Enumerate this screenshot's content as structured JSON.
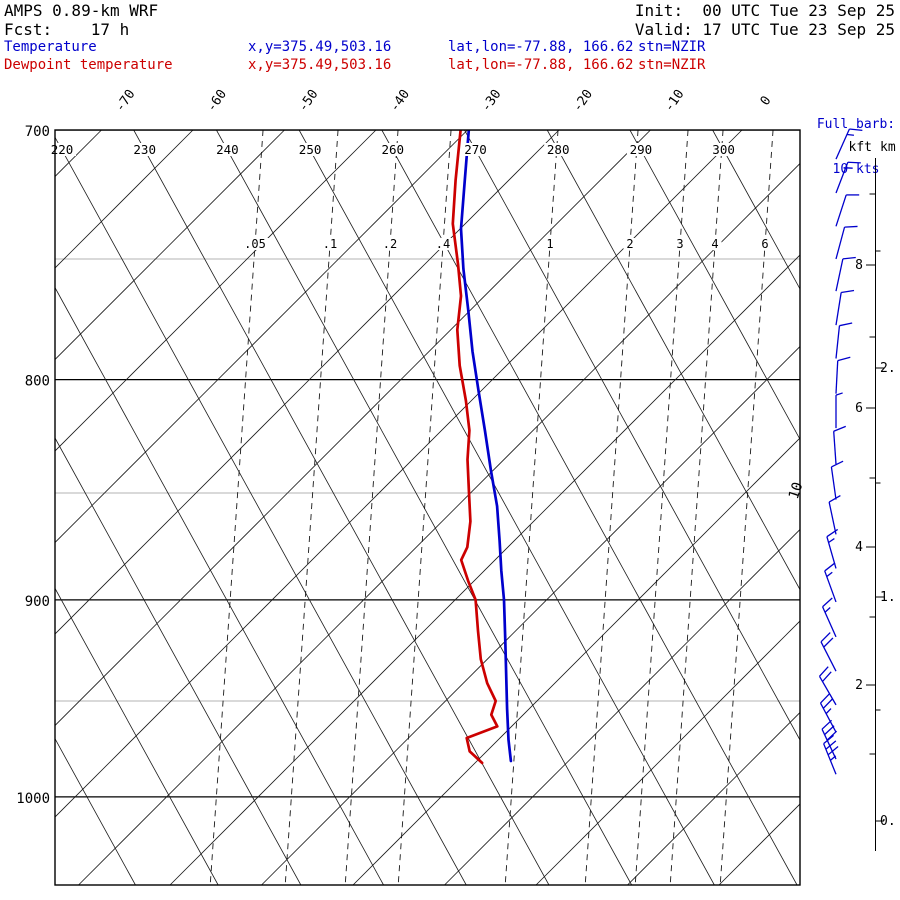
{
  "header": {
    "model": "AMPS 0.89-km WRF",
    "forecast": "Fcst:    17 h",
    "init": "Init:  00 UTC Tue 23 Sep 25",
    "valid": "Valid: 17 UTC Tue 23 Sep 25",
    "legend_temp": {
      "label": "Temperature",
      "xy": "x,y=375.49,503.16",
      "latlon": "lat,lon=-77.88, 166.62",
      "stn": "stn=NZIR"
    },
    "legend_dew": {
      "label": "Dewpoint temperature",
      "xy": "x,y=375.49,503.16",
      "latlon": "lat,lon=-77.88, 166.62",
      "stn": "stn=NZIR"
    },
    "barb_note_line1": "Full barb:",
    "barb_note_line2": "10 kts"
  },
  "colors": {
    "temperature": "#0000cc",
    "dewpoint": "#cc0000",
    "wind_barbs": "#0000cc",
    "grid_minor": "#b3b3b3",
    "grid_major": "#000000"
  },
  "chart_data": {
    "type": "line",
    "title": "Skew-T / log-P sounding, AMPS 0.89-km WRF, station NZIR",
    "pressure_axis": {
      "unit": "hPa",
      "major_ticks": [
        700,
        800,
        900,
        1000
      ],
      "minor_ticks": [
        750,
        850,
        950
      ],
      "range": [
        700,
        1050
      ]
    },
    "temperature_axis": {
      "unit": "degC",
      "isotherm_labels": [
        -70,
        -60,
        -50,
        -40,
        -30,
        -20,
        -10,
        0
      ],
      "step": 10
    },
    "dry_adiabats": {
      "unit": "K",
      "labels": [
        220,
        230,
        240,
        250,
        260,
        270,
        280,
        290,
        300
      ]
    },
    "mixing_ratio_lines": {
      "unit": "g/kg",
      "labels": [
        ".05",
        ".1",
        ".2",
        ".4",
        "1",
        "2",
        "3",
        "4",
        "6"
      ]
    },
    "height_axis": {
      "kft_title": "kft",
      "km_title": "km",
      "kft_labels": [
        8,
        6,
        4,
        2
      ],
      "km_labels": [
        "2.",
        "1.",
        "0."
      ]
    },
    "isotach_label": "10",
    "series": [
      {
        "name": "Temperature",
        "color": "#0000cc",
        "points": [
          [
            700,
            -32.7
          ],
          [
            719,
            -32.1
          ],
          [
            738,
            -31.5
          ],
          [
            754,
            -30.4
          ],
          [
            771,
            -29.0
          ],
          [
            788,
            -27.7
          ],
          [
            805,
            -26.2
          ],
          [
            822,
            -24.7
          ],
          [
            840,
            -23.2
          ],
          [
            856,
            -21.8
          ],
          [
            872,
            -20.8
          ],
          [
            886,
            -20.0
          ],
          [
            900,
            -19.1
          ],
          [
            920,
            -18.1
          ],
          [
            939,
            -17.2
          ],
          [
            954,
            -16.5
          ],
          [
            970,
            -15.7
          ],
          [
            981,
            -15.0
          ]
        ]
      },
      {
        "name": "Dewpoint temperature",
        "color": "#cc0000",
        "points": [
          [
            700,
            -33.6
          ],
          [
            719,
            -33.1
          ],
          [
            736,
            -32.5
          ],
          [
            752,
            -31.1
          ],
          [
            765,
            -30.1
          ],
          [
            779,
            -29.8
          ],
          [
            794,
            -28.8
          ],
          [
            809,
            -27.4
          ],
          [
            822,
            -26.4
          ],
          [
            835,
            -26.0
          ],
          [
            849,
            -25.2
          ],
          [
            863,
            -24.4
          ],
          [
            875,
            -24.2
          ],
          [
            881,
            -24.6
          ],
          [
            891,
            -23.4
          ],
          [
            900,
            -22.2
          ],
          [
            915,
            -21.3
          ],
          [
            929,
            -20.4
          ],
          [
            941,
            -19.2
          ],
          [
            950,
            -17.9
          ],
          [
            957,
            -18.1
          ],
          [
            963,
            -17.2
          ],
          [
            969,
            -20.3
          ],
          [
            976,
            -19.7
          ],
          [
            982,
            -18.1
          ]
        ]
      }
    ],
    "wind_barbs": {
      "unit": "kts",
      "full_barb_kts": 10,
      "levels": [
        [
          711,
          15,
          24
        ],
        [
          724,
          15,
          21
        ],
        [
          737,
          10,
          18
        ],
        [
          750,
          10,
          15
        ],
        [
          763,
          10,
          12
        ],
        [
          777,
          10,
          9
        ],
        [
          791,
          10,
          6
        ],
        [
          806,
          10,
          3
        ],
        [
          821,
          5,
          0
        ],
        [
          837,
          10,
          -4
        ],
        [
          853,
          10,
          -8
        ],
        [
          869,
          10,
          -12
        ],
        [
          885,
          15,
          -16
        ],
        [
          901,
          15,
          -20
        ],
        [
          918,
          15,
          -24
        ],
        [
          935,
          20,
          -27
        ],
        [
          952,
          20,
          -30
        ],
        [
          966,
          25,
          -28
        ],
        [
          980,
          30,
          -25
        ],
        [
          988,
          35,
          -22
        ]
      ]
    }
  }
}
